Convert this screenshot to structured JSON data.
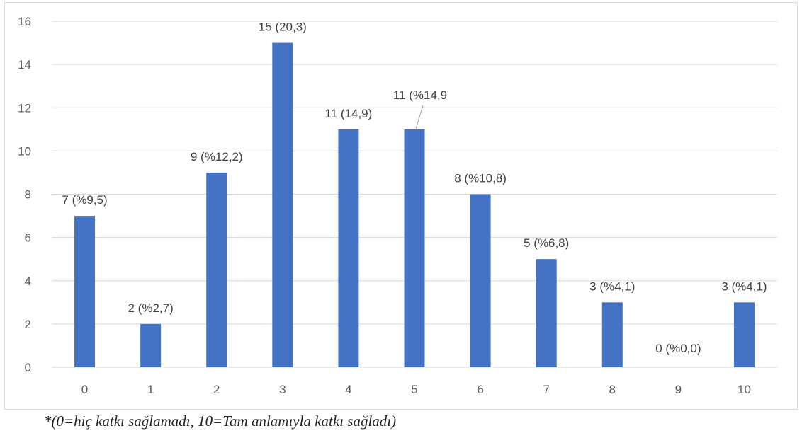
{
  "chart_data": {
    "type": "bar",
    "categories": [
      "0",
      "1",
      "2",
      "3",
      "4",
      "5",
      "6",
      "7",
      "8",
      "9",
      "10"
    ],
    "values": [
      7,
      2,
      9,
      15,
      11,
      11,
      8,
      5,
      3,
      0,
      3
    ],
    "data_labels": [
      "7 (%9,5)",
      "2 (%2,7)",
      "9 (%12,2)",
      "15 (20,3)",
      "11 (14,9)",
      "11 (%14,9",
      "8 (%10,8)",
      "5 (%6,8)",
      "3 (%4,1)",
      "0 (%0,0)",
      "3 (%4,1)"
    ],
    "yticks": [
      "0",
      "2",
      "4",
      "6",
      "8",
      "10",
      "12",
      "14",
      "16"
    ],
    "ylim": [
      0,
      16
    ],
    "grid": true,
    "legend": "none",
    "bar_color": "#4472c4",
    "grid_color": "#d9d9d9"
  },
  "footnote": "*(0=hiç katkı sağlamadı, 10=Tam anlamıyla katkı sağladı)"
}
